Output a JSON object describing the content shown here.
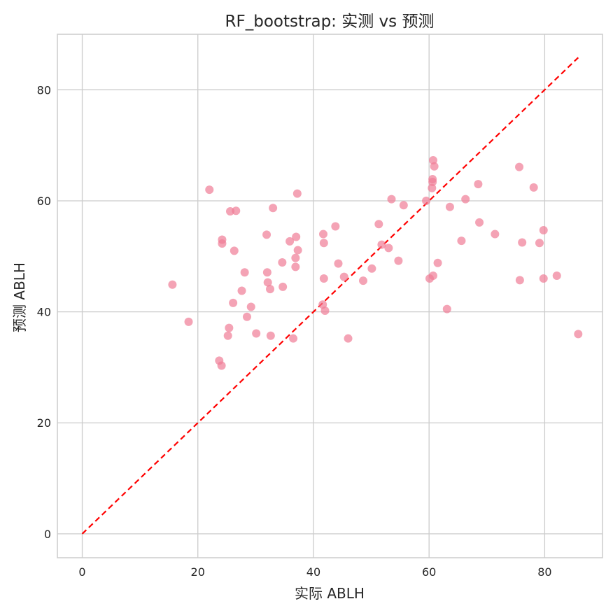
{
  "chart_data": {
    "type": "scatter",
    "title": "RF_bootstrap: 实测 vs 预测",
    "xlabel": "实际 ABLH",
    "ylabel": "预测 ABLH",
    "xlim": [
      -4.3,
      90.0
    ],
    "ylim": [
      -4.3,
      90.0
    ],
    "xticks": [
      0,
      20,
      40,
      60,
      80
    ],
    "yticks": [
      0,
      20,
      40,
      60,
      80
    ],
    "grid": true,
    "colors": {
      "points": "#f07c96",
      "reference_line": "#ff0000",
      "grid": "#cccccc",
      "frame": "#cccccc",
      "text": "#262626"
    },
    "reference_line": {
      "style": "dashed",
      "x": [
        0,
        85.8
      ],
      "y": [
        0,
        85.8
      ]
    },
    "series": [
      {
        "x": [
          15.6,
          18.4,
          22.0,
          23.7,
          24.1,
          24.2,
          24.2,
          25.2,
          25.4,
          25.6,
          26.1,
          26.3,
          26.6,
          27.6,
          28.1,
          28.5,
          29.2,
          30.1,
          31.9,
          32.0,
          32.1,
          32.5,
          32.6,
          33.0,
          34.6,
          34.7,
          35.9,
          36.5,
          36.9,
          36.9,
          37.0,
          37.2,
          37.3,
          41.6,
          41.7,
          41.8,
          41.8,
          42.0,
          43.8,
          44.3,
          45.3,
          46.0,
          48.6,
          50.1,
          51.3,
          51.8,
          53.0,
          53.5,
          54.7,
          55.6,
          59.5,
          60.1,
          60.5,
          60.6,
          60.6,
          60.7,
          60.7,
          60.9,
          61.5,
          63.1,
          63.6,
          65.6,
          66.3,
          68.5,
          68.7,
          71.4,
          75.6,
          75.7,
          76.1,
          78.1,
          79.1,
          79.8,
          79.8,
          82.1,
          85.8
        ],
        "y": [
          44.9,
          38.2,
          62.0,
          31.2,
          30.3,
          53.0,
          52.3,
          35.7,
          37.1,
          58.1,
          41.6,
          51.0,
          58.2,
          43.8,
          47.1,
          39.1,
          40.9,
          36.1,
          53.9,
          47.1,
          45.3,
          44.1,
          35.7,
          58.7,
          48.9,
          44.5,
          52.7,
          35.2,
          49.7,
          48.1,
          53.5,
          61.3,
          51.1,
          41.3,
          54.0,
          52.4,
          46.0,
          40.2,
          55.4,
          48.7,
          46.3,
          35.2,
          45.6,
          47.8,
          55.8,
          52.1,
          51.5,
          60.3,
          49.2,
          59.2,
          60.0,
          46.0,
          62.3,
          63.4,
          63.9,
          67.3,
          46.5,
          66.2,
          48.8,
          40.5,
          58.9,
          52.8,
          60.3,
          63.0,
          56.1,
          54.0,
          66.1,
          45.7,
          52.5,
          62.4,
          52.4,
          46.0,
          54.7,
          46.5,
          36.0
        ]
      }
    ]
  }
}
